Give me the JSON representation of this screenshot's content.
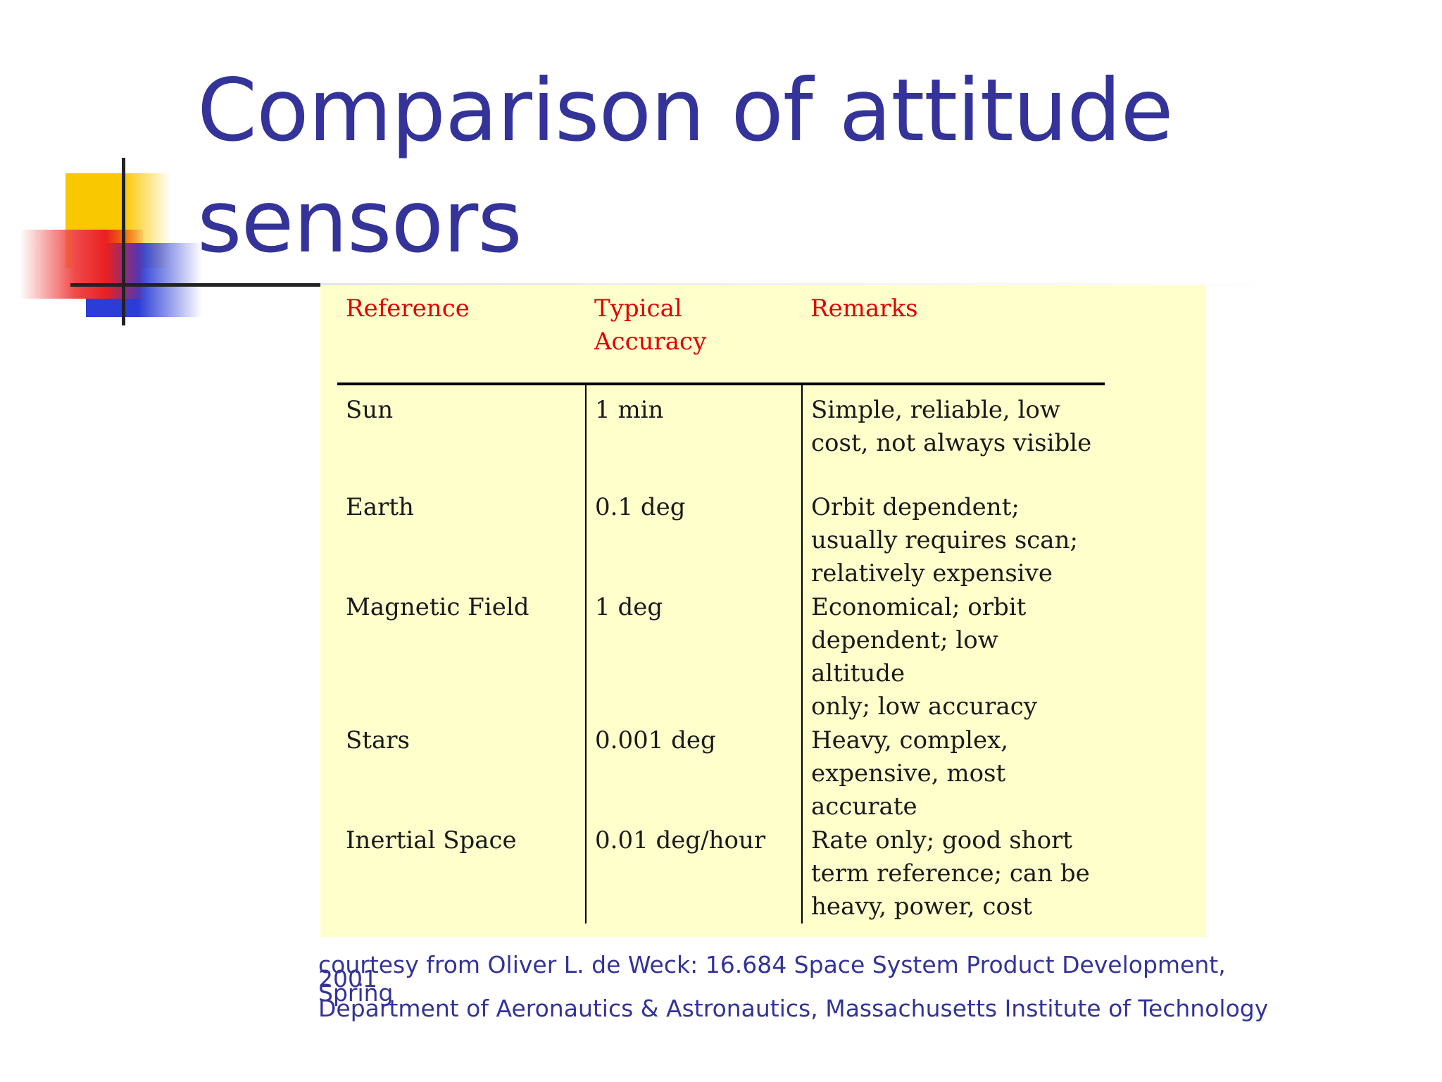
{
  "slide": {
    "title_line1": "Comparison of attitude",
    "title_line2": "sensors"
  },
  "table": {
    "headers": {
      "reference": "Reference",
      "accuracy_line1": "Typical",
      "accuracy_line2": "Accuracy",
      "remarks": "Remarks"
    },
    "rows": [
      {
        "reference": "Sun",
        "accuracy": "1 min",
        "remarks": [
          "Simple, reliable, low",
          "cost, not always visible"
        ]
      },
      {
        "reference": "Earth",
        "accuracy": "0.1 deg",
        "remarks": [
          "Orbit dependent;",
          "usually requires scan;",
          "relatively expensive"
        ]
      },
      {
        "reference": "Magnetic Field",
        "accuracy": "1 deg",
        "remarks": [
          "Economical; orbit",
          "dependent; low altitude",
          "only; low accuracy"
        ]
      },
      {
        "reference": "Stars",
        "accuracy": "0.001 deg",
        "remarks": [
          "Heavy, complex,",
          "expensive, most",
          "accurate"
        ]
      },
      {
        "reference": "Inertial Space",
        "accuracy": "0.01 deg/hour",
        "remarks": [
          "Rate only; good short",
          "term reference; can be",
          "heavy, power, cost"
        ]
      }
    ]
  },
  "credit": {
    "line1": "courtesy from Oliver L. de Weck: 16.684 Space System Product Development, Spring",
    "line2": "2001",
    "line3": "Department of Aeronautics & Astronautics, Massachusetts Institute of Technology"
  },
  "colors": {
    "title": "#333399",
    "header_text": "#e00000",
    "panel_background": "#ffffcc",
    "credit": "#333399"
  }
}
